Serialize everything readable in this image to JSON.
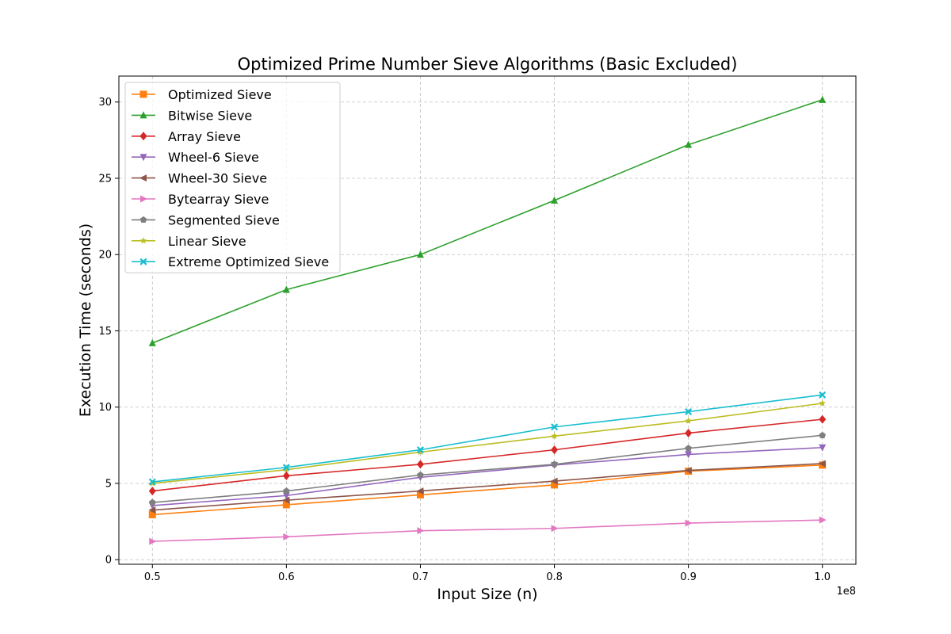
{
  "chart_data": {
    "type": "line",
    "title": "Optimized Prime Number Sieve Algorithms (Basic Excluded)",
    "xlabel": "Input Size (n)",
    "ylabel": "Execution Time (seconds)",
    "x_offset_label": "1e8",
    "x": [
      0.5,
      0.6,
      0.7,
      0.8,
      0.9,
      1.0
    ],
    "x_tick_values": [
      0.5,
      0.6,
      0.7,
      0.8,
      0.9,
      1.0
    ],
    "x_tick_labels": [
      "0.5",
      "0.6",
      "0.7",
      "0.8",
      "0.9",
      "1.0"
    ],
    "y_tick_values": [
      0,
      5,
      10,
      15,
      20,
      25,
      30
    ],
    "y_tick_labels": [
      "0",
      "5",
      "10",
      "15",
      "20",
      "25",
      "30"
    ],
    "xlim": [
      0.475,
      1.025
    ],
    "ylim": [
      -0.3,
      31.7
    ],
    "grid": true,
    "legend_position": "top-left",
    "series": [
      {
        "name": "Optimized Sieve",
        "color": "#ff7f0e",
        "marker": "square",
        "values": [
          2.95,
          3.6,
          4.25,
          4.9,
          5.8,
          6.2
        ]
      },
      {
        "name": "Bitwise Sieve",
        "color": "#2ca02c",
        "marker": "triangle-up",
        "values": [
          14.2,
          17.7,
          20.0,
          23.55,
          27.2,
          30.15
        ]
      },
      {
        "name": "Array Sieve",
        "color": "#d62728",
        "marker": "diamond",
        "values": [
          4.5,
          5.5,
          6.25,
          7.2,
          8.3,
          9.2
        ]
      },
      {
        "name": "Wheel-6 Sieve",
        "color": "#9467bd",
        "marker": "triangle-down",
        "values": [
          3.55,
          4.2,
          5.4,
          6.2,
          6.9,
          7.35
        ]
      },
      {
        "name": "Wheel-30 Sieve",
        "color": "#8c564b",
        "marker": "triangle-left",
        "values": [
          3.25,
          3.9,
          4.5,
          5.15,
          5.85,
          6.3
        ]
      },
      {
        "name": "Bytearray Sieve",
        "color": "#e377c2",
        "marker": "triangle-right",
        "values": [
          1.2,
          1.5,
          1.9,
          2.05,
          2.4,
          2.6
        ]
      },
      {
        "name": "Segmented Sieve",
        "color": "#7f7f7f",
        "marker": "pentagon",
        "values": [
          3.75,
          4.5,
          5.55,
          6.25,
          7.3,
          8.15
        ]
      },
      {
        "name": "Linear Sieve",
        "color": "#bcbd22",
        "marker": "star",
        "values": [
          5.0,
          5.9,
          7.05,
          8.1,
          9.1,
          10.25
        ]
      },
      {
        "name": "Extreme Optimized Sieve",
        "color": "#17becf",
        "marker": "x",
        "values": [
          5.1,
          6.05,
          7.2,
          8.7,
          9.7,
          10.8
        ]
      }
    ]
  }
}
